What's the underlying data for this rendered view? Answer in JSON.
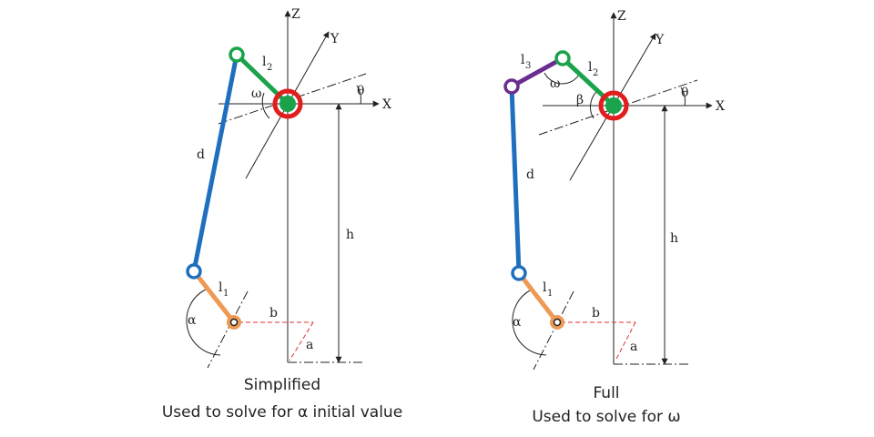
{
  "colors": {
    "rod_blue": "#1f6fbf",
    "link_green": "#1aa34a",
    "link_orange": "#ee9a55",
    "link_purple": "#6a2d8f",
    "joint_red": "#e21d1d",
    "dash_red": "#e03030"
  },
  "left": {
    "axis_z": "Z",
    "axis_y": "Y",
    "axis_x": "X",
    "theta": "θ",
    "omega": "ω",
    "l2": "l",
    "l2_sub": "2",
    "d": "d",
    "h": "h",
    "l1": "l",
    "l1_sub": "1",
    "alpha": "α",
    "b": "b",
    "a": "a",
    "caption_line1": "Simplified",
    "caption_line2": "Used to solve for α initial value"
  },
  "right": {
    "axis_z": "Z",
    "axis_y": "Y",
    "axis_x": "X",
    "theta": "θ",
    "omega": "ω",
    "beta": "β",
    "l3": "l",
    "l3_sub": "3",
    "l2": "l",
    "l2_sub": "2",
    "d": "d",
    "h": "h",
    "l1": "l",
    "l1_sub": "1",
    "alpha": "α",
    "b": "b",
    "a": "a",
    "caption_line1": "Full",
    "caption_line2": "Used to solve for ω"
  }
}
